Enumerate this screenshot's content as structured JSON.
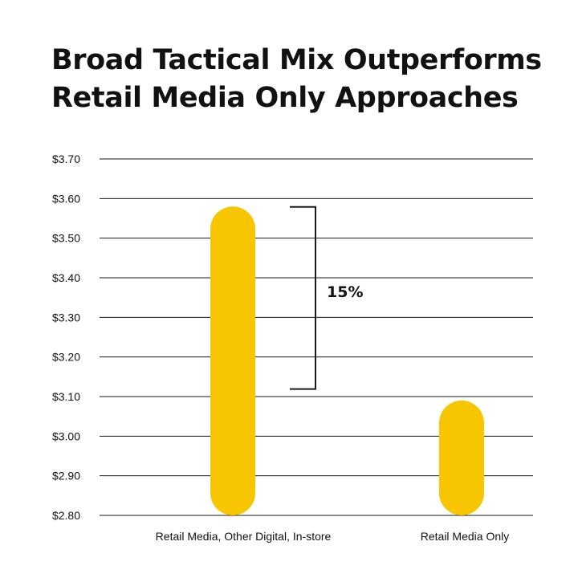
{
  "title_lines": [
    "Broad Tactical Mix Outperforms",
    "Retail Media Only Approaches"
  ],
  "colors": {
    "bar": "#F7C600",
    "grid": "#1a1a1a",
    "text": "#111111",
    "background": "#ffffff"
  },
  "chart_data": {
    "type": "bar",
    "title": "Broad Tactical Mix Outperforms Retail Media Only Approaches",
    "xlabel": "",
    "ylabel": "",
    "categories": [
      "Retail Media, Other Digital, In-store",
      "Retail Media Only"
    ],
    "values": [
      3.58,
      3.09
    ],
    "ylim": [
      2.8,
      3.7
    ],
    "yticks": [
      3.7,
      3.6,
      3.5,
      3.4,
      3.3,
      3.2,
      3.1,
      3.0,
      2.9,
      2.8
    ],
    "ytick_labels": [
      "$3.70",
      "$3.60",
      "$3.50",
      "$3.40",
      "$3.30",
      "$3.20",
      "$3.10",
      "$3.00",
      "$2.90",
      "$2.80"
    ],
    "grid": true,
    "annotation": {
      "text": "15%",
      "from": 3.58,
      "to": 3.12
    }
  }
}
